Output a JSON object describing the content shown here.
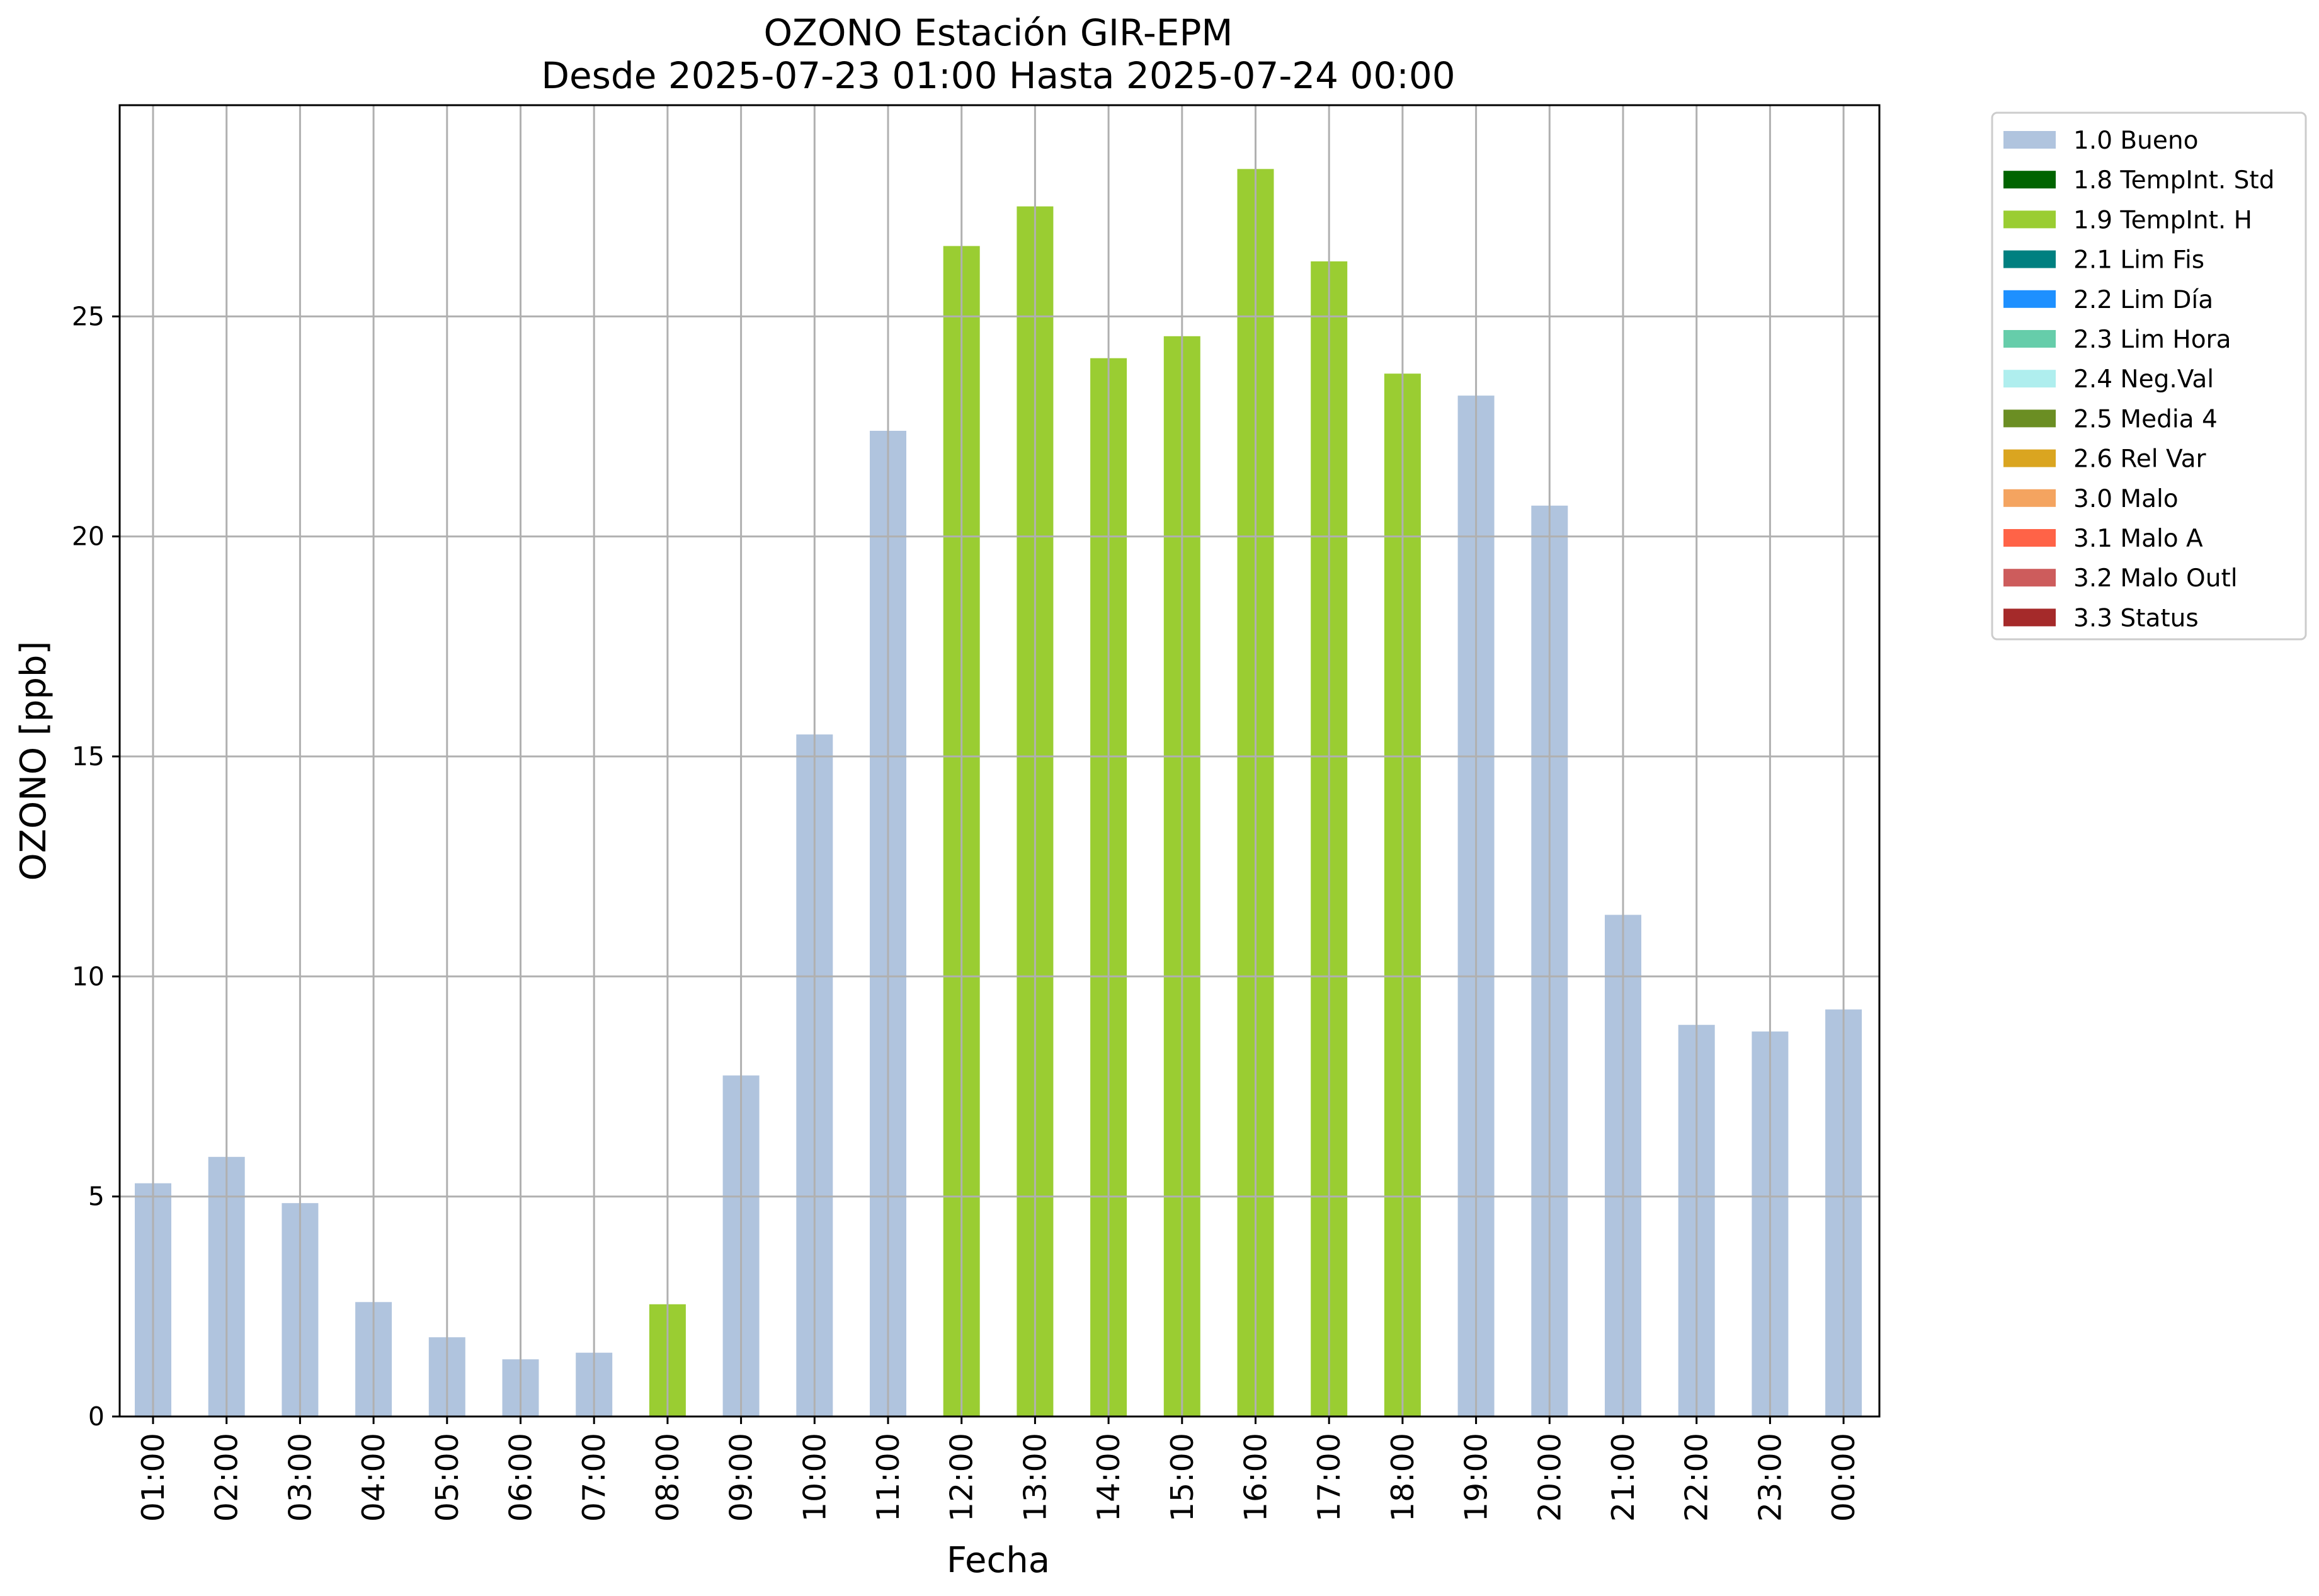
{
  "chart_data": {
    "type": "bar",
    "title": "OZONO Estación GIR-EPM",
    "subtitle": "Desde 2025-07-23 01:00 Hasta 2025-07-24 00:00",
    "xlabel": "Fecha",
    "ylabel": "OZONO [ppb]",
    "ylim": [
      0,
      29.8
    ],
    "yticks": [
      0,
      5,
      10,
      15,
      20,
      25
    ],
    "grid": true,
    "legend_position": "outside-top-right",
    "categories": [
      "01:00",
      "02:00",
      "03:00",
      "04:00",
      "05:00",
      "06:00",
      "07:00",
      "08:00",
      "09:00",
      "10:00",
      "11:00",
      "12:00",
      "13:00",
      "14:00",
      "15:00",
      "16:00",
      "17:00",
      "18:00",
      "19:00",
      "20:00",
      "21:00",
      "22:00",
      "23:00",
      "00:00"
    ],
    "values": [
      5.3,
      5.9,
      4.85,
      2.6,
      1.8,
      1.3,
      1.45,
      2.55,
      7.75,
      15.5,
      22.4,
      26.6,
      27.5,
      24.05,
      24.55,
      28.35,
      26.25,
      23.7,
      23.2,
      20.7,
      11.4,
      8.9,
      8.75,
      9.25
    ],
    "flags": [
      "1.0 Bueno",
      "1.0 Bueno",
      "1.0 Bueno",
      "1.0 Bueno",
      "1.0 Bueno",
      "1.0 Bueno",
      "1.0 Bueno",
      "1.9 TempInt. H",
      "1.0 Bueno",
      "1.0 Bueno",
      "1.0 Bueno",
      "1.9 TempInt. H",
      "1.9 TempInt. H",
      "1.9 TempInt. H",
      "1.9 TempInt. H",
      "1.9 TempInt. H",
      "1.9 TempInt. H",
      "1.9 TempInt. H",
      "1.0 Bueno",
      "1.0 Bueno",
      "1.0 Bueno",
      "1.0 Bueno",
      "1.0 Bueno",
      "1.0 Bueno"
    ],
    "legend": [
      {
        "label": "1.0 Bueno",
        "color": "#b0c4de"
      },
      {
        "label": "1.8 TempInt. Std",
        "color": "#006400"
      },
      {
        "label": "1.9 TempInt. H",
        "color": "#9acd32"
      },
      {
        "label": "2.1 Lim Fis",
        "color": "#008080"
      },
      {
        "label": "2.2 Lim Día",
        "color": "#1e90ff"
      },
      {
        "label": "2.3 Lim Hora",
        "color": "#66cdaa"
      },
      {
        "label": "2.4 Neg.Val",
        "color": "#afeeee"
      },
      {
        "label": "2.5 Media 4",
        "color": "#6b8e23"
      },
      {
        "label": "2.6 Rel Var",
        "color": "#daa520"
      },
      {
        "label": "3.0 Malo",
        "color": "#f4a460"
      },
      {
        "label": "3.1 Malo A",
        "color": "#ff6347"
      },
      {
        "label": "3.2 Malo Outl",
        "color": "#cd5c5c"
      },
      {
        "label": "3.3 Status",
        "color": "#a52a2a"
      }
    ]
  }
}
